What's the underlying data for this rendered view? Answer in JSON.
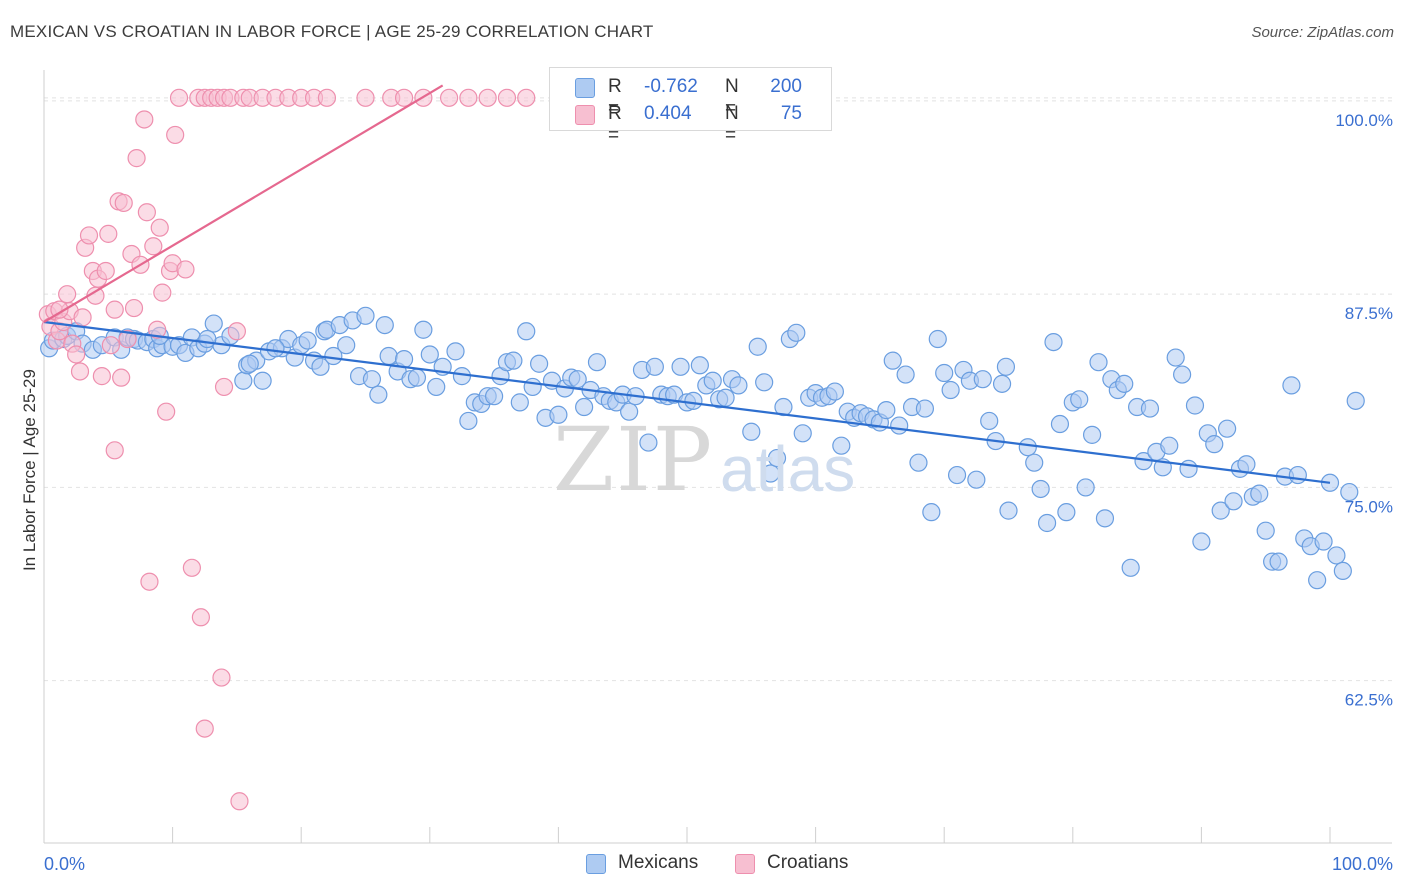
{
  "title": "MEXICAN VS CROATIAN IN LABOR FORCE | AGE 25-29 CORRELATION CHART",
  "source": "Source: ZipAtlas.com",
  "watermark": {
    "part1": "ZIP",
    "part2": "atlas"
  },
  "colors": {
    "blue": "#6a9ee0",
    "blue_fill": "#aecbf2",
    "blue_line": "#2e6fcf",
    "pink": "#ee8fae",
    "pink_fill": "#f7bfd1",
    "pink_line": "#e5688f",
    "tick_text": "#3a6fd0"
  },
  "legend_top": {
    "rows": [
      {
        "r_label": "R =",
        "r_value": "-0.762",
        "n_label": "N =",
        "n_value": "200"
      },
      {
        "r_label": "R =",
        "r_value": "0.404",
        "n_label": "N =",
        "n_value": "75"
      }
    ]
  },
  "legend_bottom": {
    "series1": "Mexicans",
    "series2": "Croatians"
  },
  "chart_data": {
    "type": "scatter",
    "title": "MEXICAN VS CROATIAN IN LABOR FORCE | AGE 25-29 CORRELATION CHART",
    "xlabel": "",
    "ylabel": "In Labor Force | Age 25-29",
    "xlim": [
      0,
      100
    ],
    "ylim": [
      52,
      102
    ],
    "x_tick_labels": [
      "0.0%",
      "100.0%"
    ],
    "y_ticks": [
      62.5,
      75.0,
      87.5,
      100.0
    ],
    "y_tick_labels": [
      "62.5%",
      "75.0%",
      "87.5%",
      "100.0%"
    ],
    "grid": true,
    "series": [
      {
        "name": "Mexicans",
        "r": -0.762,
        "n": 200,
        "trend": {
          "x": [
            0,
            100
          ],
          "y": [
            85.7,
            75.3
          ]
        },
        "points": [
          [
            0.4,
            84.0
          ],
          [
            0.7,
            84.5
          ],
          [
            1.5,
            84.6
          ],
          [
            1.8,
            84.8
          ],
          [
            2.5,
            85.1
          ],
          [
            3.0,
            84.3
          ],
          [
            3.8,
            83.9
          ],
          [
            4.5,
            84.2
          ],
          [
            5.5,
            84.7
          ],
          [
            6.0,
            83.9
          ],
          [
            6.5,
            84.7
          ],
          [
            7.0,
            84.6
          ],
          [
            7.3,
            84.5
          ],
          [
            8.0,
            84.4
          ],
          [
            8.5,
            84.6
          ],
          [
            8.8,
            84.0
          ],
          [
            9.2,
            84.2
          ],
          [
            10.0,
            84.1
          ],
          [
            10.5,
            84.2
          ],
          [
            11.0,
            83.7
          ],
          [
            11.5,
            84.7
          ],
          [
            12.0,
            84.0
          ],
          [
            12.5,
            84.3
          ],
          [
            13.2,
            85.6
          ],
          [
            13.8,
            84.2
          ],
          [
            14.5,
            84.8
          ],
          [
            15.5,
            81.9
          ],
          [
            15.8,
            82.9
          ],
          [
            16.5,
            83.2
          ],
          [
            17.0,
            81.9
          ],
          [
            17.5,
            83.8
          ],
          [
            18.5,
            84.0
          ],
          [
            19.0,
            84.6
          ],
          [
            19.5,
            83.4
          ],
          [
            20.0,
            84.2
          ],
          [
            20.5,
            84.5
          ],
          [
            21.0,
            83.2
          ],
          [
            21.5,
            82.8
          ],
          [
            21.8,
            85.1
          ],
          [
            22.0,
            85.2
          ],
          [
            22.5,
            83.5
          ],
          [
            23.0,
            85.5
          ],
          [
            23.5,
            84.2
          ],
          [
            24.0,
            85.8
          ],
          [
            24.5,
            82.2
          ],
          [
            25.0,
            86.1
          ],
          [
            25.5,
            82.0
          ],
          [
            26.0,
            81.0
          ],
          [
            26.5,
            85.5
          ],
          [
            26.8,
            83.5
          ],
          [
            27.5,
            82.5
          ],
          [
            28.0,
            83.3
          ],
          [
            28.5,
            82.0
          ],
          [
            29.0,
            82.1
          ],
          [
            29.5,
            85.2
          ],
          [
            30.0,
            83.6
          ],
          [
            30.5,
            81.5
          ],
          [
            31.0,
            82.8
          ],
          [
            32.0,
            83.8
          ],
          [
            32.5,
            82.2
          ],
          [
            33.0,
            79.3
          ],
          [
            33.5,
            80.5
          ],
          [
            34.0,
            80.4
          ],
          [
            34.5,
            80.9
          ],
          [
            35.0,
            80.9
          ],
          [
            35.5,
            82.2
          ],
          [
            36.0,
            83.1
          ],
          [
            36.5,
            83.2
          ],
          [
            37.0,
            80.5
          ],
          [
            37.5,
            85.1
          ],
          [
            38.0,
            81.5
          ],
          [
            38.5,
            83.0
          ],
          [
            39.0,
            79.5
          ],
          [
            39.5,
            81.9
          ],
          [
            40.0,
            79.7
          ],
          [
            40.5,
            81.4
          ],
          [
            41.0,
            82.1
          ],
          [
            41.5,
            82.0
          ],
          [
            42.0,
            80.2
          ],
          [
            42.5,
            81.3
          ],
          [
            43.0,
            83.1
          ],
          [
            43.5,
            80.9
          ],
          [
            44.0,
            80.6
          ],
          [
            44.5,
            80.5
          ],
          [
            45.0,
            81.0
          ],
          [
            45.5,
            79.9
          ],
          [
            46.0,
            80.9
          ],
          [
            46.5,
            82.6
          ],
          [
            47.0,
            77.9
          ],
          [
            47.5,
            82.8
          ],
          [
            48.0,
            81.0
          ],
          [
            48.5,
            80.9
          ],
          [
            49.0,
            81.0
          ],
          [
            49.5,
            82.8
          ],
          [
            50.0,
            80.5
          ],
          [
            50.5,
            80.6
          ],
          [
            51.0,
            82.9
          ],
          [
            51.5,
            81.6
          ],
          [
            52.0,
            81.9
          ],
          [
            52.5,
            80.7
          ],
          [
            53.0,
            80.8
          ],
          [
            53.5,
            82.0
          ],
          [
            54.0,
            81.6
          ],
          [
            55.0,
            78.6
          ],
          [
            55.5,
            84.1
          ],
          [
            56.0,
            81.8
          ],
          [
            56.5,
            75.9
          ],
          [
            57.0,
            76.9
          ],
          [
            57.5,
            80.2
          ],
          [
            58.0,
            84.6
          ],
          [
            58.5,
            85.0
          ],
          [
            59.0,
            78.5
          ],
          [
            59.5,
            80.8
          ],
          [
            60.0,
            81.1
          ],
          [
            60.5,
            80.8
          ],
          [
            61.0,
            80.9
          ],
          [
            61.5,
            81.2
          ],
          [
            62.0,
            77.7
          ],
          [
            62.5,
            79.9
          ],
          [
            63.0,
            79.5
          ],
          [
            63.5,
            79.8
          ],
          [
            64.0,
            79.6
          ],
          [
            64.5,
            79.4
          ],
          [
            65.0,
            79.2
          ],
          [
            65.5,
            80.0
          ],
          [
            66.0,
            83.2
          ],
          [
            66.5,
            79.0
          ],
          [
            67.0,
            82.3
          ],
          [
            67.5,
            80.2
          ],
          [
            68.0,
            76.6
          ],
          [
            68.5,
            80.1
          ],
          [
            69.0,
            73.4
          ],
          [
            69.5,
            84.6
          ],
          [
            70.0,
            82.4
          ],
          [
            70.5,
            81.3
          ],
          [
            71.0,
            75.8
          ],
          [
            71.5,
            82.6
          ],
          [
            72.0,
            81.9
          ],
          [
            72.5,
            75.5
          ],
          [
            73.0,
            82.0
          ],
          [
            73.5,
            79.3
          ],
          [
            74.0,
            78.0
          ],
          [
            74.5,
            81.7
          ],
          [
            74.8,
            82.8
          ],
          [
            75.0,
            73.5
          ],
          [
            76.5,
            77.6
          ],
          [
            77.0,
            76.6
          ],
          [
            77.5,
            74.9
          ],
          [
            78.0,
            72.7
          ],
          [
            78.5,
            84.4
          ],
          [
            79.0,
            79.1
          ],
          [
            79.5,
            73.4
          ],
          [
            80.0,
            80.5
          ],
          [
            80.5,
            80.7
          ],
          [
            81.0,
            75.0
          ],
          [
            81.5,
            78.4
          ],
          [
            82.0,
            83.1
          ],
          [
            82.5,
            73.0
          ],
          [
            83.0,
            82.0
          ],
          [
            83.5,
            81.3
          ],
          [
            84.0,
            81.7
          ],
          [
            84.5,
            69.8
          ],
          [
            85.0,
            80.2
          ],
          [
            85.5,
            76.7
          ],
          [
            86.0,
            80.1
          ],
          [
            86.5,
            77.3
          ],
          [
            87.0,
            76.3
          ],
          [
            87.5,
            77.7
          ],
          [
            88.0,
            83.4
          ],
          [
            88.5,
            82.3
          ],
          [
            89.0,
            76.2
          ],
          [
            89.5,
            80.3
          ],
          [
            90.0,
            71.5
          ],
          [
            90.5,
            78.5
          ],
          [
            91.0,
            77.8
          ],
          [
            91.5,
            73.5
          ],
          [
            92.0,
            78.8
          ],
          [
            92.5,
            74.1
          ],
          [
            93.0,
            76.2
          ],
          [
            93.5,
            76.5
          ],
          [
            94.0,
            74.4
          ],
          [
            94.5,
            74.6
          ],
          [
            95.0,
            72.2
          ],
          [
            95.5,
            70.2
          ],
          [
            96.0,
            70.2
          ],
          [
            96.5,
            75.7
          ],
          [
            97.0,
            81.6
          ],
          [
            97.5,
            75.8
          ],
          [
            98.0,
            71.7
          ],
          [
            98.5,
            71.2
          ],
          [
            99.0,
            69.0
          ],
          [
            99.5,
            71.5
          ],
          [
            100.0,
            75.3
          ],
          [
            100.5,
            70.6
          ],
          [
            101.0,
            69.6
          ],
          [
            101.5,
            74.7
          ],
          [
            102.0,
            80.6
          ],
          [
            9.0,
            84.8
          ],
          [
            12.7,
            84.6
          ],
          [
            16.0,
            83.0
          ],
          [
            18.0,
            84.0
          ]
        ]
      },
      {
        "name": "Croatians",
        "r": 0.404,
        "n": 75,
        "trend": {
          "x": [
            0,
            31
          ],
          "y": [
            85.7,
            101.0
          ]
        },
        "points": [
          [
            0.3,
            86.2
          ],
          [
            0.5,
            85.4
          ],
          [
            0.8,
            86.4
          ],
          [
            1.0,
            84.5
          ],
          [
            1.2,
            85.1
          ],
          [
            1.5,
            85.7
          ],
          [
            1.8,
            87.5
          ],
          [
            2.0,
            86.4
          ],
          [
            2.2,
            84.3
          ],
          [
            2.5,
            83.6
          ],
          [
            2.8,
            82.5
          ],
          [
            3.0,
            86.0
          ],
          [
            3.2,
            90.5
          ],
          [
            3.5,
            91.3
          ],
          [
            3.8,
            89.0
          ],
          [
            4.0,
            87.4
          ],
          [
            4.2,
            88.5
          ],
          [
            4.5,
            82.2
          ],
          [
            4.8,
            89.0
          ],
          [
            5.0,
            91.4
          ],
          [
            5.2,
            84.2
          ],
          [
            5.5,
            86.5
          ],
          [
            5.8,
            93.5
          ],
          [
            6.0,
            82.1
          ],
          [
            6.2,
            93.4
          ],
          [
            6.5,
            84.6
          ],
          [
            6.8,
            90.1
          ],
          [
            7.0,
            86.6
          ],
          [
            7.2,
            96.3
          ],
          [
            7.5,
            89.4
          ],
          [
            7.8,
            98.8
          ],
          [
            8.0,
            92.8
          ],
          [
            8.2,
            68.9
          ],
          [
            8.5,
            90.6
          ],
          [
            8.8,
            85.2
          ],
          [
            9.0,
            91.8
          ],
          [
            9.2,
            87.6
          ],
          [
            9.5,
            79.9
          ],
          [
            9.8,
            89.0
          ],
          [
            10.0,
            89.5
          ],
          [
            10.5,
            100.2
          ],
          [
            11.0,
            89.1
          ],
          [
            11.5,
            69.8
          ],
          [
            12.0,
            100.2
          ],
          [
            12.5,
            100.2
          ],
          [
            13.0,
            100.2
          ],
          [
            13.5,
            100.2
          ],
          [
            14.0,
            100.2
          ],
          [
            14.5,
            100.2
          ],
          [
            15.0,
            85.1
          ],
          [
            15.5,
            100.2
          ],
          [
            16.0,
            100.2
          ],
          [
            17.0,
            100.2
          ],
          [
            18.0,
            100.2
          ],
          [
            19.0,
            100.2
          ],
          [
            20.0,
            100.2
          ],
          [
            21.0,
            100.2
          ],
          [
            22.0,
            100.2
          ],
          [
            25.0,
            100.2
          ],
          [
            27.0,
            100.2
          ],
          [
            28.0,
            100.2
          ],
          [
            29.5,
            100.2
          ],
          [
            31.5,
            100.2
          ],
          [
            33.0,
            100.2
          ],
          [
            34.5,
            100.2
          ],
          [
            36.0,
            100.2
          ],
          [
            37.5,
            100.2
          ],
          [
            10.2,
            97.8
          ],
          [
            12.2,
            66.6
          ],
          [
            13.8,
            62.7
          ],
          [
            12.5,
            59.4
          ],
          [
            15.2,
            54.7
          ],
          [
            5.5,
            77.4
          ],
          [
            14.0,
            81.5
          ],
          [
            1.2,
            86.5
          ]
        ]
      }
    ]
  }
}
